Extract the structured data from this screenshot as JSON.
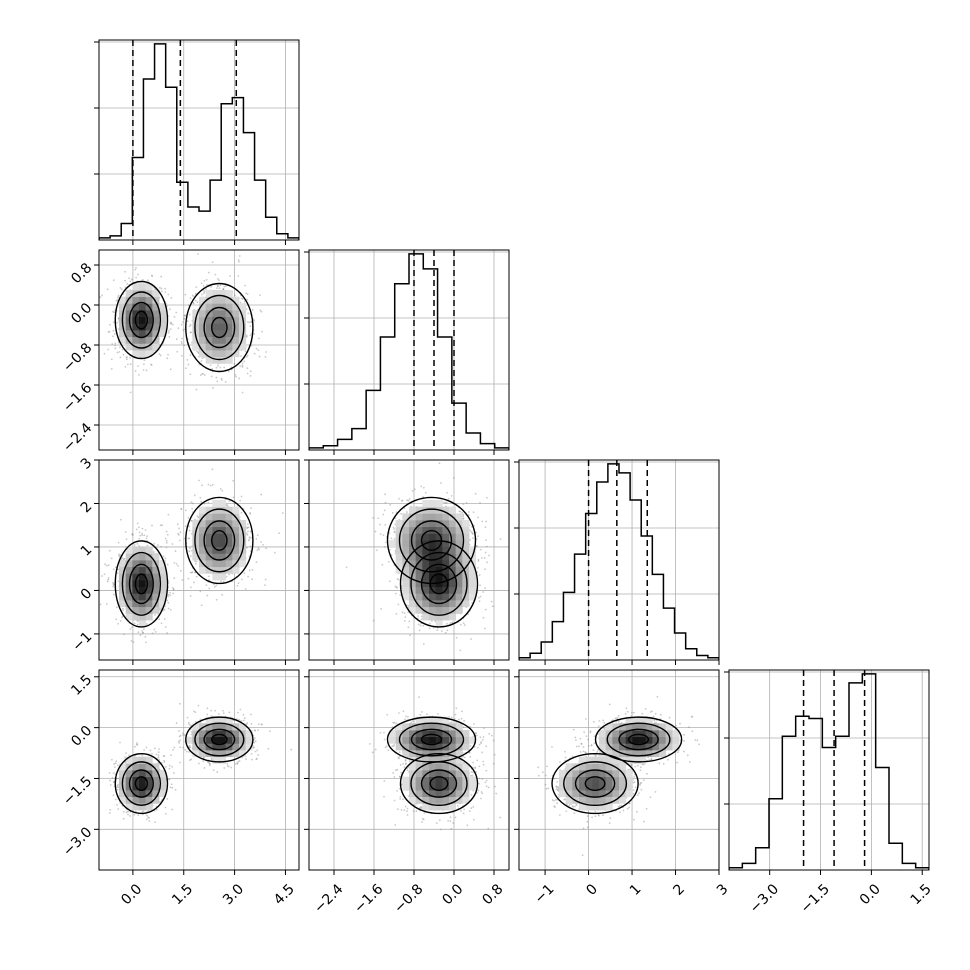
{
  "chart_data": {
    "type": "corner",
    "title": "",
    "dimensions": 4,
    "parameters": [
      {
        "label": "",
        "range": [
          -1.0,
          4.9
        ],
        "ticks": [
          0.0,
          1.5,
          3.0,
          4.5
        ],
        "tick_labels": [
          "0.0",
          "1.5",
          "3.0",
          "4.5"
        ],
        "quantiles": [
          0.0,
          1.4,
          3.05
        ],
        "histogram": [
          1,
          2,
          8,
          40,
          78,
          95,
          74,
          28,
          16,
          14,
          29,
          66,
          69,
          52,
          29,
          11,
          3,
          1
        ]
      },
      {
        "label": "",
        "range": [
          -2.9,
          1.1
        ],
        "ticks": [
          -2.4,
          -1.6,
          -0.8,
          0.0,
          0.8
        ],
        "tick_labels": [
          "−2.4",
          "−1.6",
          "−0.8",
          "0.0",
          "0.8"
        ],
        "quantiles": [
          -0.8,
          -0.4,
          0.0
        ],
        "histogram": [
          1,
          2,
          5,
          10,
          28,
          53,
          78,
          92,
          85,
          53,
          22,
          8,
          3,
          1
        ]
      },
      {
        "label": "",
        "range": [
          -1.6,
          3.0
        ],
        "ticks": [
          -1,
          0,
          1,
          2,
          3
        ],
        "tick_labels": [
          "−1",
          "0",
          "1",
          "2",
          "3"
        ],
        "quantiles": [
          0.0,
          0.65,
          1.35
        ],
        "histogram": [
          1,
          3,
          8,
          17,
          30,
          47,
          65,
          79,
          87,
          83,
          71,
          55,
          38,
          23,
          12,
          5,
          2,
          1
        ]
      },
      {
        "label": "",
        "range": [
          -4.2,
          1.7
        ],
        "ticks": [
          -3.0,
          -1.5,
          0.0,
          1.5
        ],
        "tick_labels": [
          "−3.0",
          "−1.5",
          "0.0",
          "1.5"
        ],
        "quantiles": [
          -2.0,
          -1.1,
          -0.2
        ],
        "histogram": [
          1,
          3,
          10,
          32,
          60,
          69,
          68,
          55,
          60,
          84,
          88,
          46,
          12,
          3,
          1
        ]
      }
    ],
    "clusters": [
      {
        "weight": 0.5,
        "mean": [
          0.25,
          -0.3,
          0.15,
          -1.65
        ],
        "sd": [
          0.35,
          0.35,
          0.45,
          0.4
        ]
      },
      {
        "weight": 0.5,
        "mean": [
          2.55,
          -0.45,
          1.15,
          -0.35
        ],
        "sd": [
          0.45,
          0.4,
          0.45,
          0.3
        ]
      }
    ],
    "axes_grid": true,
    "show_1d_histograms": true,
    "show_2d_density_contours": true,
    "quantile_line_style": "dashed",
    "colors": {
      "line": "#000000",
      "grid": "#b0b0b0",
      "points": "#8a8a8a",
      "frame": "#000000"
    }
  }
}
